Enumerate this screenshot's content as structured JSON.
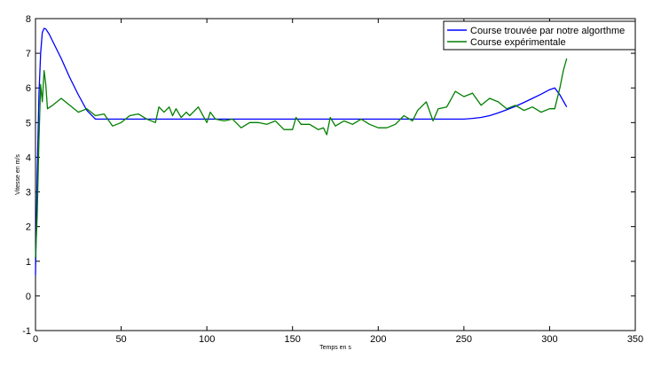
{
  "chart_data": {
    "type": "line",
    "xlabel": "Temps en s",
    "ylabel": "Vitesse en m/s",
    "xlim": [
      0,
      350
    ],
    "ylim": [
      -1,
      8
    ],
    "xticks": [
      0,
      50,
      100,
      150,
      200,
      250,
      300,
      350
    ],
    "yticks": [
      -1,
      0,
      1,
      2,
      3,
      4,
      5,
      6,
      7,
      8
    ],
    "grid": false,
    "legend_position": "top-right",
    "series": [
      {
        "name": "Course trouvée par notre algorthme",
        "color": "#0000ff",
        "x": [
          0,
          1,
          2,
          3,
          4,
          5,
          6,
          8,
          10,
          15,
          20,
          25,
          30,
          35,
          40,
          60,
          80,
          100,
          120,
          140,
          160,
          180,
          200,
          220,
          240,
          250,
          255,
          260,
          265,
          270,
          275,
          280,
          285,
          290,
          295,
          300,
          303,
          306,
          310
        ],
        "y": [
          0.6,
          3.5,
          5.8,
          7.0,
          7.6,
          7.72,
          7.7,
          7.55,
          7.35,
          6.85,
          6.3,
          5.8,
          5.35,
          5.1,
          5.1,
          5.1,
          5.1,
          5.1,
          5.1,
          5.1,
          5.1,
          5.1,
          5.1,
          5.1,
          5.1,
          5.1,
          5.12,
          5.15,
          5.2,
          5.28,
          5.37,
          5.47,
          5.58,
          5.7,
          5.82,
          5.95,
          6.0,
          5.8,
          5.45
        ]
      },
      {
        "name": "Course expérimentale",
        "color": "#007f00",
        "x": [
          0,
          1,
          2,
          3,
          4,
          5,
          6,
          7,
          10,
          15,
          20,
          25,
          30,
          35,
          40,
          45,
          50,
          55,
          60,
          65,
          70,
          72,
          75,
          78,
          80,
          82,
          85,
          88,
          90,
          95,
          100,
          102,
          105,
          110,
          115,
          120,
          125,
          130,
          135,
          140,
          145,
          150,
          152,
          155,
          160,
          165,
          168,
          170,
          172,
          175,
          180,
          185,
          190,
          195,
          200,
          205,
          210,
          215,
          220,
          223,
          228,
          232,
          235,
          240,
          245,
          250,
          255,
          260,
          265,
          270,
          275,
          280,
          285,
          290,
          295,
          300,
          303,
          306,
          308,
          310
        ],
        "y": [
          1.1,
          2.3,
          4.5,
          6.1,
          5.6,
          6.5,
          6.1,
          5.4,
          5.5,
          5.7,
          5.5,
          5.3,
          5.4,
          5.2,
          5.25,
          4.9,
          5.0,
          5.2,
          5.25,
          5.1,
          5.0,
          5.45,
          5.3,
          5.45,
          5.2,
          5.4,
          5.15,
          5.3,
          5.2,
          5.45,
          5.0,
          5.3,
          5.1,
          5.05,
          5.1,
          4.85,
          5.0,
          5.0,
          4.95,
          5.05,
          4.8,
          4.8,
          5.15,
          4.95,
          4.95,
          4.8,
          4.85,
          4.65,
          5.15,
          4.9,
          5.05,
          4.95,
          5.1,
          4.95,
          4.85,
          4.85,
          4.95,
          5.2,
          5.05,
          5.35,
          5.6,
          5.05,
          5.4,
          5.45,
          5.9,
          5.75,
          5.85,
          5.5,
          5.7,
          5.6,
          5.4,
          5.5,
          5.35,
          5.45,
          5.3,
          5.4,
          5.4,
          6.0,
          6.5,
          6.85
        ]
      }
    ]
  }
}
